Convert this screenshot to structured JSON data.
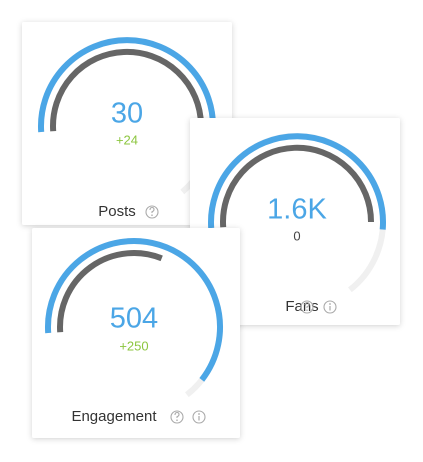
{
  "cards": [
    {
      "value": "30",
      "change": "+24",
      "label": "Posts"
    },
    {
      "value": "1.6K",
      "change": "0",
      "label": "Fans"
    },
    {
      "value": "504",
      "change": "+250",
      "label": "Engagement"
    }
  ]
}
